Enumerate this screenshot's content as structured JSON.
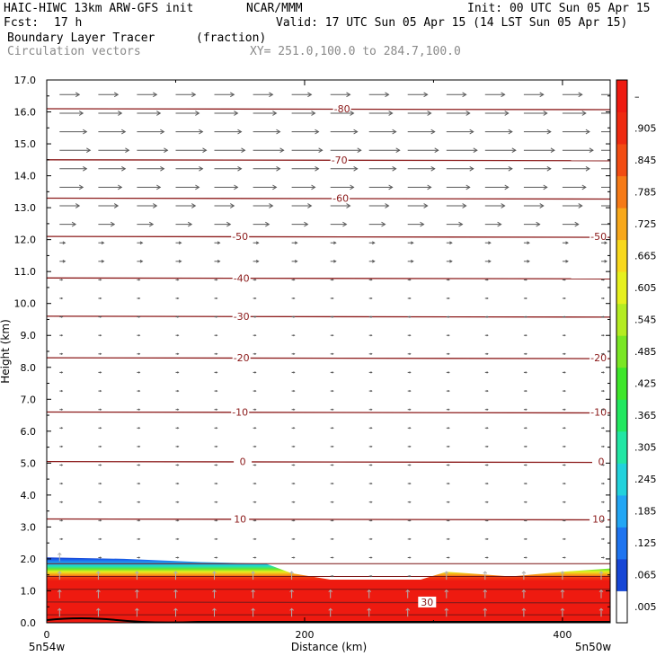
{
  "header": {
    "model": "HAIC-HIWC 13km ARW-GFS init",
    "org": "NCAR/MMM",
    "init": "Init: 00 UTC Sun 05 Apr 15",
    "fcst_label": "Fcst:",
    "fcst_value": "17 h",
    "valid": "Valid: 17 UTC Sun 05 Apr 15 (14 LST Sun 05 Apr 15)",
    "field": "Boundary Layer Tracer",
    "field_units": "(fraction)",
    "vectors": "Circulation vectors",
    "xy": "XY= 251.0,100.0 to 284.7,100.0"
  },
  "chart_data": {
    "type": "heatmap",
    "xlabel": "Distance (km)",
    "ylabel": "Height (km)",
    "xlim": [
      0,
      437
    ],
    "ylim": [
      0,
      17
    ],
    "x_ticks": [
      "0",
      "200",
      "400"
    ],
    "x_endpoints": [
      "5n54w",
      "5n50w"
    ],
    "y_ticks": [
      "0.0",
      "1.0",
      "2.0",
      "3.0",
      "4.0",
      "5.0",
      "6.0",
      "7.0",
      "8.0",
      "9.0",
      "10.0",
      "11.0",
      "12.0",
      "13.0",
      "14.0",
      "15.0",
      "16.0",
      "17.0"
    ],
    "colorbar_labels": [
      ".005",
      ".065",
      ".125",
      ".185",
      ".245",
      ".305",
      ".365",
      ".425",
      ".485",
      ".545",
      ".605",
      ".665",
      ".725",
      ".785",
      ".845",
      ".905",
      "–"
    ],
    "colorbar_colors": [
      "#ffffff",
      "#1646d6",
      "#1e74f0",
      "#22a6f4",
      "#22d2dc",
      "#22e6a4",
      "#22e860",
      "#3ee62a",
      "#7ae624",
      "#b4ec22",
      "#e6f01e",
      "#f8d81c",
      "#f8a81a",
      "#f67a16",
      "#f24c12",
      "#ee2a10",
      "#ee1a10"
    ],
    "boundary_layer_top_km": [
      {
        "x": 0,
        "top": 2.05
      },
      {
        "x": 60,
        "top": 2.0
      },
      {
        "x": 120,
        "top": 1.9
      },
      {
        "x": 170,
        "top": 1.85
      },
      {
        "x": 190,
        "top": 1.55
      },
      {
        "x": 220,
        "top": 1.35
      },
      {
        "x": 290,
        "top": 1.35
      },
      {
        "x": 310,
        "top": 1.6
      },
      {
        "x": 360,
        "top": 1.45
      },
      {
        "x": 400,
        "top": 1.6
      },
      {
        "x": 437,
        "top": 1.7
      }
    ],
    "temperature_contours": [
      {
        "label": "-80",
        "height_km": 16.1,
        "label_x_km": [
          229
        ]
      },
      {
        "label": "-70",
        "height_km": 14.5,
        "label_x_km": [
          227
        ]
      },
      {
        "label": "-60",
        "height_km": 13.3,
        "label_x_km": [
          228
        ]
      },
      {
        "label": "-50",
        "height_km": 12.1,
        "label_x_km": [
          150,
          428
        ]
      },
      {
        "label": "-40",
        "height_km": 10.8,
        "label_x_km": [
          151
        ]
      },
      {
        "label": "-30",
        "height_km": 9.6,
        "label_x_km": [
          151
        ]
      },
      {
        "label": "-20",
        "height_km": 8.3,
        "label_x_km": [
          151,
          428
        ]
      },
      {
        "label": "-10",
        "height_km": 6.6,
        "label_x_km": [
          150,
          428
        ]
      },
      {
        "label": "0",
        "height_km": 5.05,
        "label_x_km": [
          152,
          430
        ]
      },
      {
        "label": "10",
        "height_km": 3.25,
        "label_x_km": [
          150,
          428
        ]
      },
      {
        "label": "30",
        "height_km": 0.65,
        "label_x_km": [
          295
        ]
      }
    ],
    "grid": true,
    "legend": "right colorbar"
  }
}
